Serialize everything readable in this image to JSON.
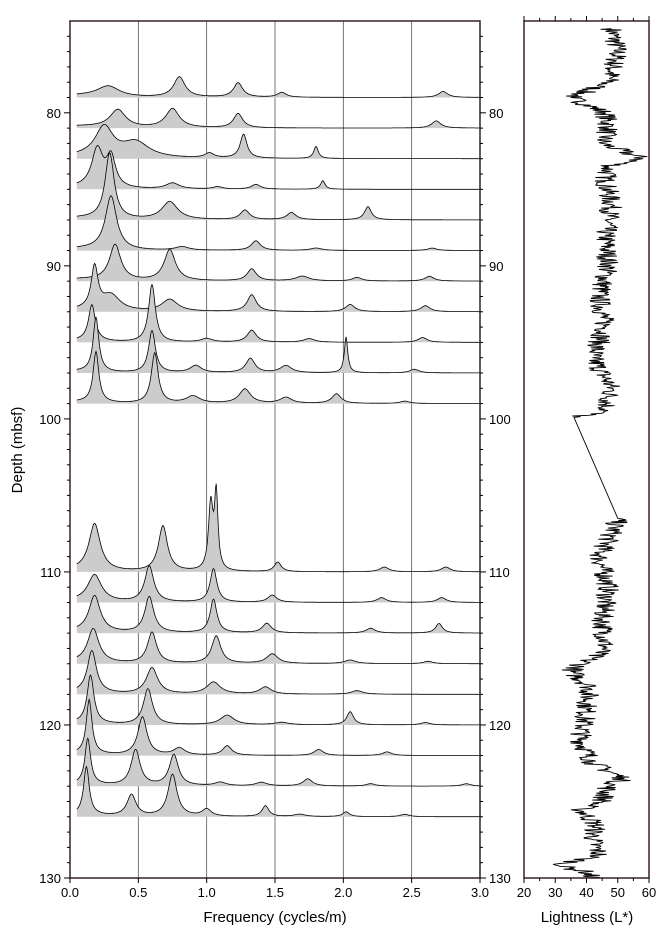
{
  "chart_data": [
    {
      "type": "area",
      "panel": "spectra",
      "xlabel": "Frequency (cycles/m)",
      "ylabel": "Depth (mbsf)",
      "xlim": [
        0.0,
        3.0
      ],
      "ylim": [
        130,
        74
      ],
      "x_ticks": [
        "0.0",
        "0.5",
        "1.0",
        "1.5",
        "2.0",
        "2.5",
        "3.0"
      ],
      "x_tick_values": [
        0.0,
        0.5,
        1.0,
        1.5,
        2.0,
        2.5,
        3.0
      ],
      "y_ticks": [
        "80",
        "90",
        "100",
        "110",
        "120",
        "130"
      ],
      "y_tick_values": [
        80,
        90,
        100,
        110,
        120,
        130
      ],
      "grid": "vertical lines at each frequency tick",
      "fill_color": "#cccccc",
      "line_color": "#000000",
      "spectra": [
        {
          "depth": 79.0,
          "x_start": 0.05,
          "peaks": [
            [
              0.28,
              0.9,
              0.1
            ],
            [
              0.8,
              1.7,
              0.05
            ],
            [
              1.23,
              1.2,
              0.04
            ],
            [
              1.55,
              0.4,
              0.04
            ],
            [
              2.73,
              0.5,
              0.04
            ]
          ]
        },
        {
          "depth": 81.0,
          "x_start": 0.05,
          "peaks": [
            [
              0.35,
              1.5,
              0.07
            ],
            [
              0.75,
              1.6,
              0.06
            ],
            [
              1.23,
              1.2,
              0.04
            ],
            [
              2.68,
              0.6,
              0.04
            ]
          ]
        },
        {
          "depth": 83.0,
          "x_start": 0.05,
          "peaks": [
            [
              0.25,
              2.5,
              0.08
            ],
            [
              0.48,
              1.3,
              0.12
            ],
            [
              1.02,
              0.4,
              0.04
            ],
            [
              1.27,
              2.0,
              0.03
            ],
            [
              1.8,
              1.0,
              0.02
            ]
          ]
        },
        {
          "depth": 85.0,
          "x_start": 0.05,
          "peaks": [
            [
              0.2,
              3.2,
              0.05
            ],
            [
              0.3,
              2.5,
              0.04
            ],
            [
              0.75,
              0.5,
              0.06
            ],
            [
              1.08,
              0.2,
              0.04
            ],
            [
              1.36,
              0.4,
              0.04
            ],
            [
              1.85,
              0.7,
              0.02
            ]
          ]
        },
        {
          "depth": 87.0,
          "x_start": 0.05,
          "peaks": [
            [
              0.29,
              5.5,
              0.04
            ],
            [
              0.73,
              1.5,
              0.07
            ],
            [
              1.28,
              0.8,
              0.04
            ],
            [
              1.62,
              0.6,
              0.04
            ],
            [
              2.18,
              1.1,
              0.03
            ]
          ]
        },
        {
          "depth": 89.0,
          "x_start": 0.05,
          "peaks": [
            [
              0.3,
              4.5,
              0.05
            ],
            [
              0.82,
              0.3,
              0.06
            ],
            [
              1.36,
              0.8,
              0.04
            ],
            [
              1.8,
              0.2,
              0.05
            ],
            [
              2.65,
              0.2,
              0.04
            ]
          ]
        },
        {
          "depth": 91.0,
          "x_start": 0.05,
          "peaks": [
            [
              0.33,
              3.0,
              0.05
            ],
            [
              0.73,
              2.6,
              0.05
            ],
            [
              1.33,
              1.0,
              0.04
            ],
            [
              1.7,
              0.4,
              0.06
            ],
            [
              2.1,
              0.3,
              0.04
            ],
            [
              2.63,
              0.4,
              0.04
            ]
          ]
        },
        {
          "depth": 93.0,
          "x_start": 0.05,
          "peaks": [
            [
              0.18,
              3.5,
              0.03
            ],
            [
              0.3,
              1.3,
              0.08
            ],
            [
              0.73,
              1.0,
              0.07
            ],
            [
              1.33,
              1.4,
              0.04
            ],
            [
              2.05,
              0.6,
              0.04
            ],
            [
              2.6,
              0.5,
              0.04
            ]
          ]
        },
        {
          "depth": 95.0,
          "x_start": 0.05,
          "peaks": [
            [
              0.16,
              3.0,
              0.03
            ],
            [
              0.6,
              4.8,
              0.03
            ],
            [
              1.0,
              0.3,
              0.05
            ],
            [
              1.33,
              1.0,
              0.04
            ],
            [
              1.75,
              0.3,
              0.05
            ],
            [
              2.58,
              0.4,
              0.04
            ]
          ]
        },
        {
          "depth": 97.0,
          "x_start": 0.05,
          "peaks": [
            [
              0.19,
              4.5,
              0.025
            ],
            [
              0.6,
              3.5,
              0.03
            ],
            [
              0.92,
              0.6,
              0.05
            ],
            [
              1.32,
              1.2,
              0.04
            ],
            [
              1.58,
              0.6,
              0.05
            ],
            [
              2.02,
              3.0,
              0.015
            ],
            [
              2.52,
              0.3,
              0.04
            ]
          ]
        },
        {
          "depth": 99.0,
          "x_start": 0.05,
          "peaks": [
            [
              0.19,
              4.2,
              0.025
            ],
            [
              0.62,
              4.2,
              0.03
            ],
            [
              0.9,
              0.6,
              0.06
            ],
            [
              1.28,
              1.2,
              0.05
            ],
            [
              1.58,
              0.5,
              0.05
            ],
            [
              1.95,
              0.8,
              0.04
            ],
            [
              2.45,
              0.2,
              0.04
            ]
          ]
        },
        {
          "depth": 110.0,
          "x_start": 0.05,
          "peaks": [
            [
              0.18,
              3.9,
              0.05
            ],
            [
              0.68,
              3.8,
              0.04
            ],
            [
              1.03,
              5.5,
              0.02
            ],
            [
              1.07,
              6.2,
              0.015
            ],
            [
              1.52,
              0.8,
              0.03
            ],
            [
              2.3,
              0.4,
              0.04
            ],
            [
              2.75,
              0.4,
              0.04
            ]
          ]
        },
        {
          "depth": 112.0,
          "x_start": 0.05,
          "peaks": [
            [
              0.18,
              2.2,
              0.06
            ],
            [
              0.58,
              3.0,
              0.04
            ],
            [
              1.05,
              2.8,
              0.03
            ],
            [
              1.48,
              0.6,
              0.04
            ],
            [
              2.28,
              0.4,
              0.04
            ],
            [
              2.72,
              0.4,
              0.04
            ]
          ]
        },
        {
          "depth": 114.0,
          "x_start": 0.05,
          "peaks": [
            [
              0.18,
              3.0,
              0.05
            ],
            [
              0.58,
              3.0,
              0.04
            ],
            [
              1.05,
              2.8,
              0.03
            ],
            [
              1.44,
              0.8,
              0.04
            ],
            [
              2.2,
              0.4,
              0.04
            ],
            [
              2.7,
              0.8,
              0.03
            ]
          ]
        },
        {
          "depth": 116.0,
          "x_start": 0.05,
          "peaks": [
            [
              0.17,
              2.8,
              0.05
            ],
            [
              0.6,
              2.6,
              0.04
            ],
            [
              1.07,
              2.3,
              0.04
            ],
            [
              1.48,
              0.8,
              0.05
            ],
            [
              2.05,
              0.3,
              0.05
            ],
            [
              2.62,
              0.2,
              0.04
            ]
          ]
        },
        {
          "depth": 118.0,
          "x_start": 0.05,
          "peaks": [
            [
              0.16,
              3.5,
              0.04
            ],
            [
              0.6,
              2.2,
              0.05
            ],
            [
              1.05,
              1.0,
              0.06
            ],
            [
              1.43,
              0.6,
              0.05
            ],
            [
              2.1,
              0.3,
              0.05
            ]
          ]
        },
        {
          "depth": 120.0,
          "x_start": 0.05,
          "peaks": [
            [
              0.15,
              4.0,
              0.03
            ],
            [
              0.57,
              3.0,
              0.04
            ],
            [
              1.15,
              0.8,
              0.06
            ],
            [
              1.55,
              0.2,
              0.06
            ],
            [
              2.05,
              1.1,
              0.03
            ],
            [
              2.6,
              0.2,
              0.04
            ]
          ]
        },
        {
          "depth": 122.0,
          "x_start": 0.05,
          "peaks": [
            [
              0.14,
              4.5,
              0.025
            ],
            [
              0.53,
              3.2,
              0.04
            ],
            [
              0.8,
              0.6,
              0.05
            ],
            [
              1.15,
              0.8,
              0.04
            ],
            [
              1.82,
              0.5,
              0.04
            ],
            [
              2.32,
              0.3,
              0.04
            ]
          ]
        },
        {
          "depth": 124.0,
          "x_start": 0.05,
          "peaks": [
            [
              0.13,
              3.8,
              0.025
            ],
            [
              0.48,
              3.0,
              0.04
            ],
            [
              0.76,
              2.6,
              0.04
            ],
            [
              1.1,
              0.3,
              0.05
            ],
            [
              1.4,
              0.3,
              0.05
            ],
            [
              1.74,
              0.6,
              0.04
            ],
            [
              2.2,
              0.2,
              0.04
            ],
            [
              2.9,
              0.2,
              0.04
            ]
          ]
        },
        {
          "depth": 126.0,
          "x_start": 0.05,
          "peaks": [
            [
              0.12,
              4.0,
              0.025
            ],
            [
              0.45,
              1.8,
              0.04
            ],
            [
              0.75,
              3.5,
              0.04
            ],
            [
              1.0,
              0.6,
              0.04
            ],
            [
              1.43,
              0.9,
              0.03
            ],
            [
              1.68,
              0.2,
              0.05
            ],
            [
              2.02,
              0.4,
              0.03
            ],
            [
              2.45,
              0.2,
              0.04
            ]
          ]
        }
      ]
    },
    {
      "type": "line",
      "panel": "lightness",
      "xlabel": "Lightness (L*)",
      "xlim": [
        20,
        60
      ],
      "ylim": [
        130,
        74
      ],
      "x_ticks": [
        "20",
        "30",
        "40",
        "50",
        "60"
      ],
      "x_tick_values": [
        20,
        30,
        40,
        50,
        60
      ],
      "y_ticks": [
        "80",
        "90",
        "100",
        "110",
        "120",
        "130"
      ],
      "y_tick_values": [
        80,
        90,
        100,
        110,
        120,
        130
      ],
      "line_color": "#000000",
      "series": [
        {
          "depth": [
            74.5,
            76.0,
            78.0,
            79.0,
            80.0,
            81.0,
            82.0,
            83.0,
            83.5,
            84.5,
            86.0,
            88.0,
            90.0,
            92.0,
            94.0,
            96.0,
            98.0,
            99.5,
            99.9,
            106.5,
            107.5,
            109.0,
            111.0,
            113.0,
            115.0,
            116.5,
            117.5,
            119.0,
            121.0,
            122.5,
            123.5,
            124.0,
            125.0,
            125.5,
            126.5,
            127.5,
            128.5,
            129.2,
            129.6,
            130.0
          ],
          "lightness": [
            48,
            50,
            47,
            35,
            46,
            47,
            45,
            58,
            47,
            46,
            48,
            46,
            47,
            44,
            46,
            42,
            48,
            46,
            36,
            50,
            48,
            44,
            47,
            45,
            46,
            35,
            41,
            40,
            38,
            42,
            52,
            47,
            45,
            38,
            43,
            42,
            44,
            31,
            40,
            42
          ]
        }
      ]
    }
  ]
}
